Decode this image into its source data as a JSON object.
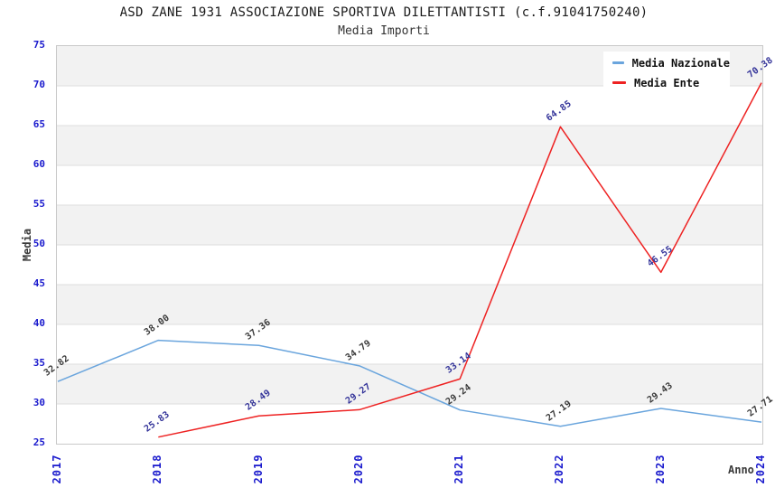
{
  "title": "ASD ZANE 1931 ASSOCIAZIONE SPORTIVA DILETTANTISTI (c.f.91041750240)",
  "subtitle": "Media Importi",
  "legend": {
    "items": [
      "Media Nazionale",
      "Media Ente"
    ]
  },
  "chart_data": {
    "type": "line",
    "x": [
      "2017",
      "2018",
      "2019",
      "2020",
      "2021",
      "2022",
      "2023",
      "2024"
    ],
    "series": [
      {
        "name": "Media Nazionale",
        "color": "#6aa5dd",
        "label_color": "#3a3a3a",
        "values": [
          32.82,
          38.0,
          37.36,
          34.79,
          29.24,
          27.19,
          29.43,
          27.71
        ]
      },
      {
        "name": "Media Ente",
        "color": "#ee2222",
        "label_color": "#333399",
        "values": [
          null,
          25.83,
          28.49,
          29.27,
          33.14,
          64.85,
          46.55,
          70.38
        ]
      }
    ],
    "xlabel": "Anno",
    "ylabel": "Media",
    "ylim": [
      25,
      75
    ],
    "ytick_step": 5,
    "yticks": [
      25,
      30,
      35,
      40,
      45,
      50,
      55,
      60,
      65,
      70,
      75
    ],
    "value_label_decimals": 2,
    "grid": "alternating-horizontal-bands",
    "legend_position": "top-right",
    "colors": {
      "band": "#f2f2f2",
      "gridline": "#dddddd",
      "axis_tick": "#1a1acd",
      "plot_border": "#c9c9c9"
    }
  }
}
